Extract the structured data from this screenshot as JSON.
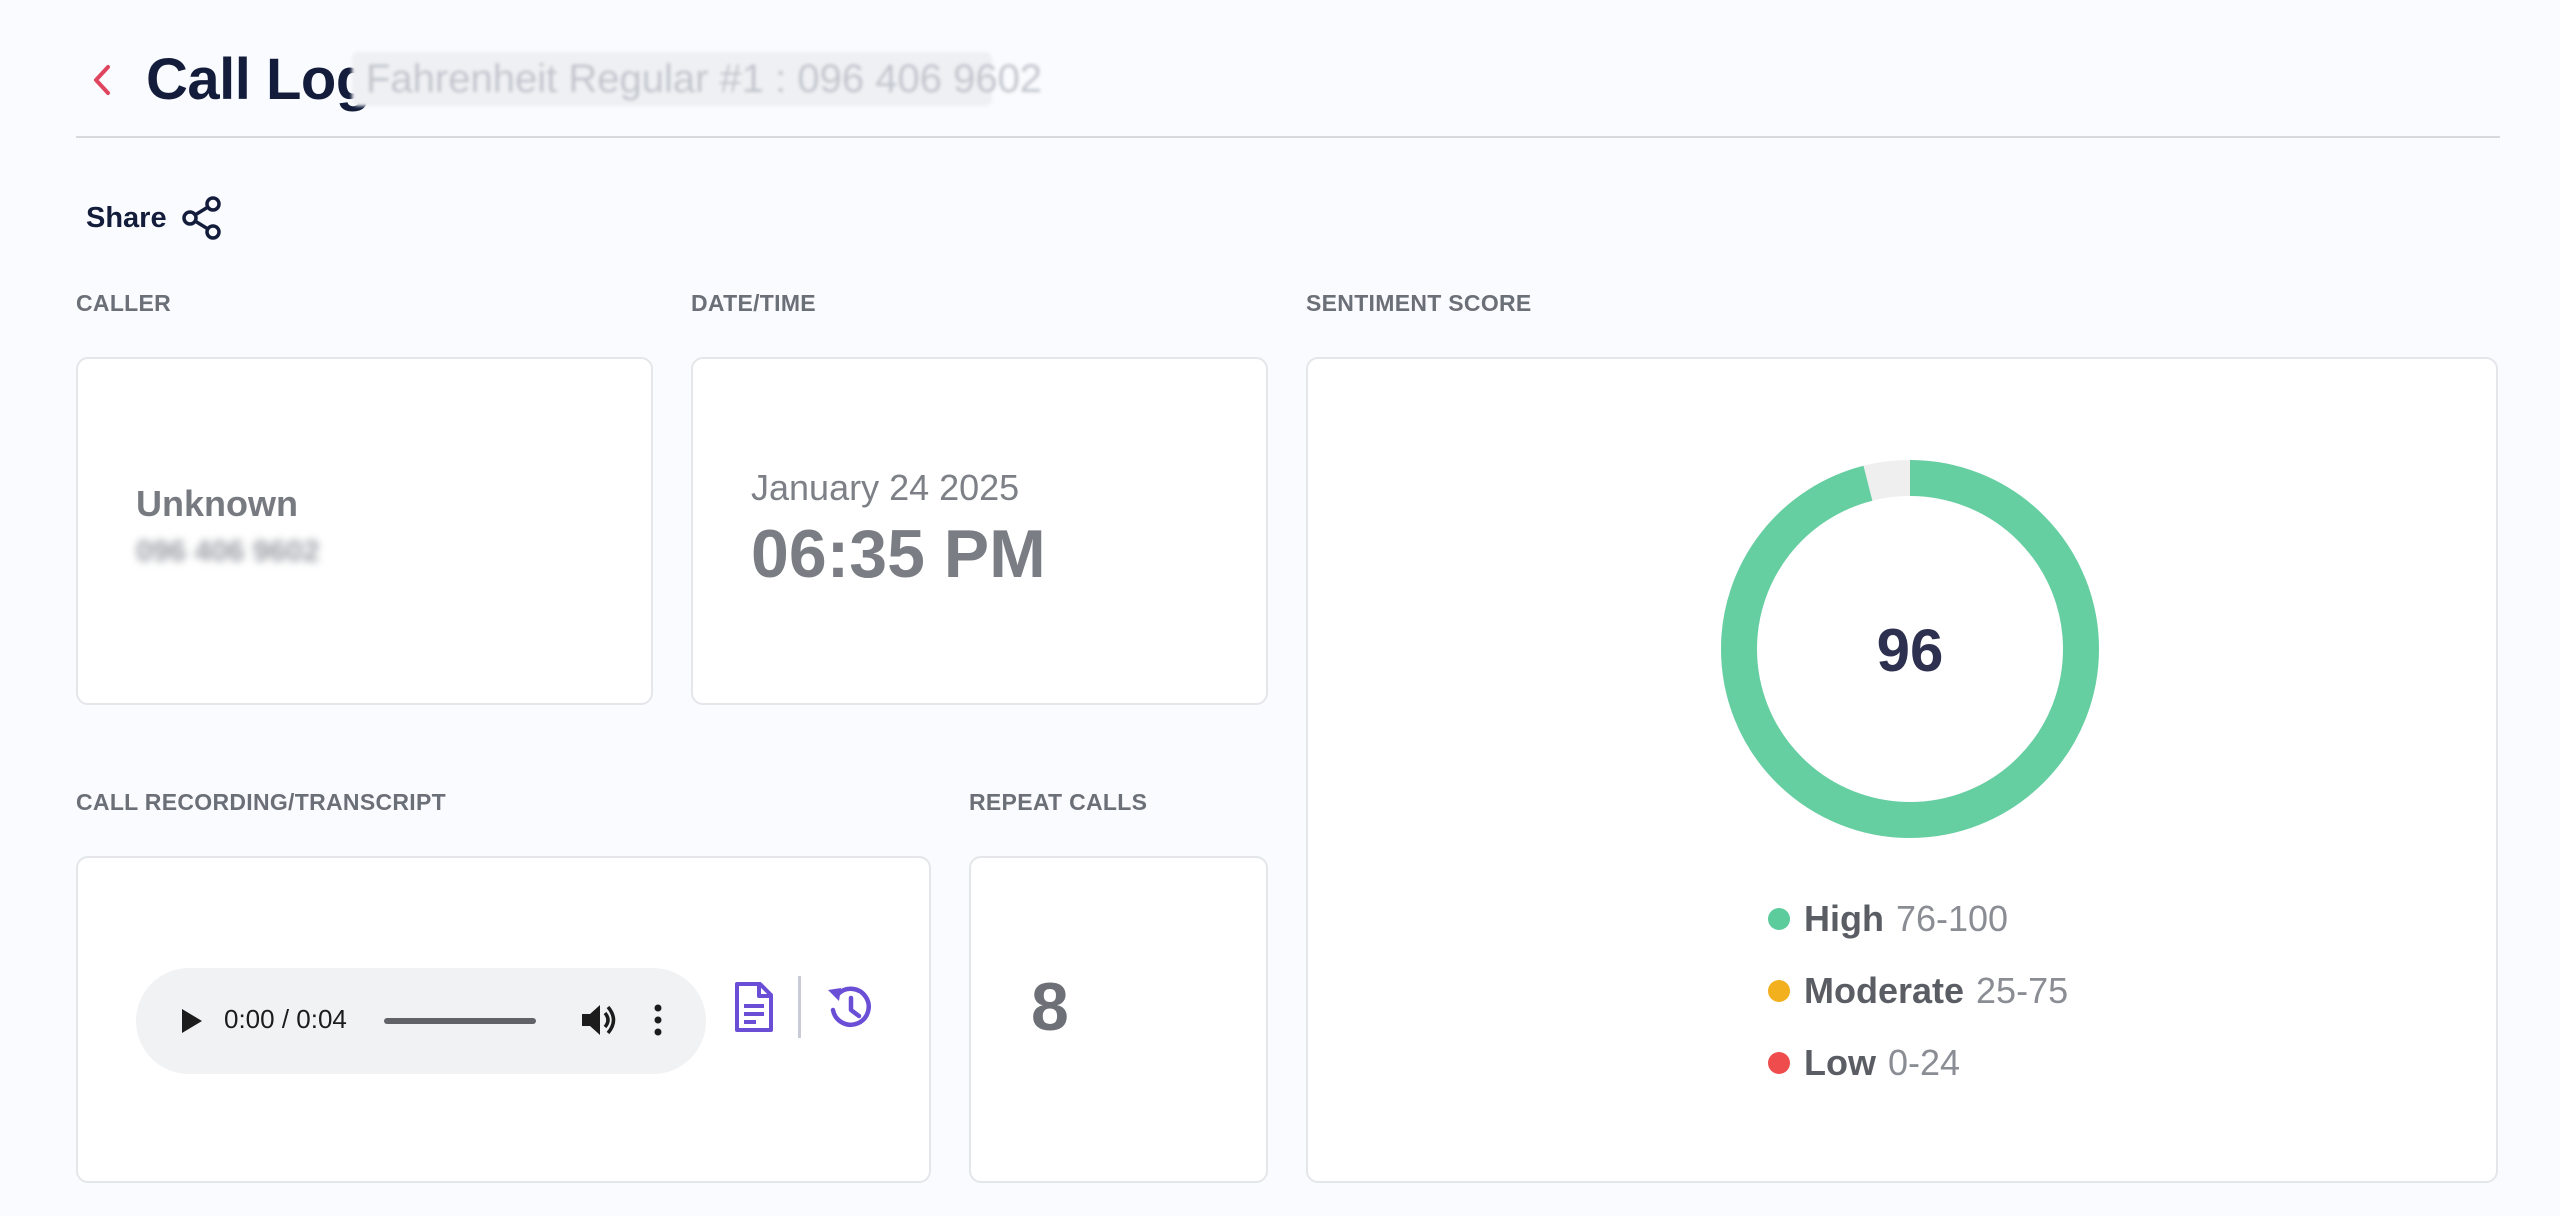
{
  "header": {
    "title": "Call Log",
    "subtitle": "Fahrenheit Regular #1 : 096 406 9602"
  },
  "share": {
    "label": "Share"
  },
  "sections": {
    "caller": "CALLER",
    "datetime": "DATE/TIME",
    "sentiment": "SENTIMENT SCORE",
    "recording": "CALL RECORDING/TRANSCRIPT",
    "repeat": "REPEAT CALLS"
  },
  "caller": {
    "name": "Unknown",
    "phone": "096 406 9602"
  },
  "datetime": {
    "date": "January 24 2025",
    "time": "06:35 PM"
  },
  "sentiment": {
    "score": "96",
    "score_fraction": 0.96,
    "fill_color": "#66cfa2",
    "track_color": "#efefef",
    "legend": [
      {
        "name": "High",
        "range": "76-100",
        "color": "#5ccc9c"
      },
      {
        "name": "Moderate",
        "range": "25-75",
        "color": "#f2b01e"
      },
      {
        "name": "Low",
        "range": "0-24",
        "color": "#ef4d4d"
      }
    ]
  },
  "recording": {
    "time_display": "0:00 / 0:04",
    "icons": {
      "play": "play-icon",
      "volume": "volume-icon",
      "more": "more-vertical-icon",
      "transcript": "document-icon",
      "history": "history-icon"
    },
    "accent_color": "#6a4fd6"
  },
  "repeat_calls": {
    "count": "8"
  }
}
